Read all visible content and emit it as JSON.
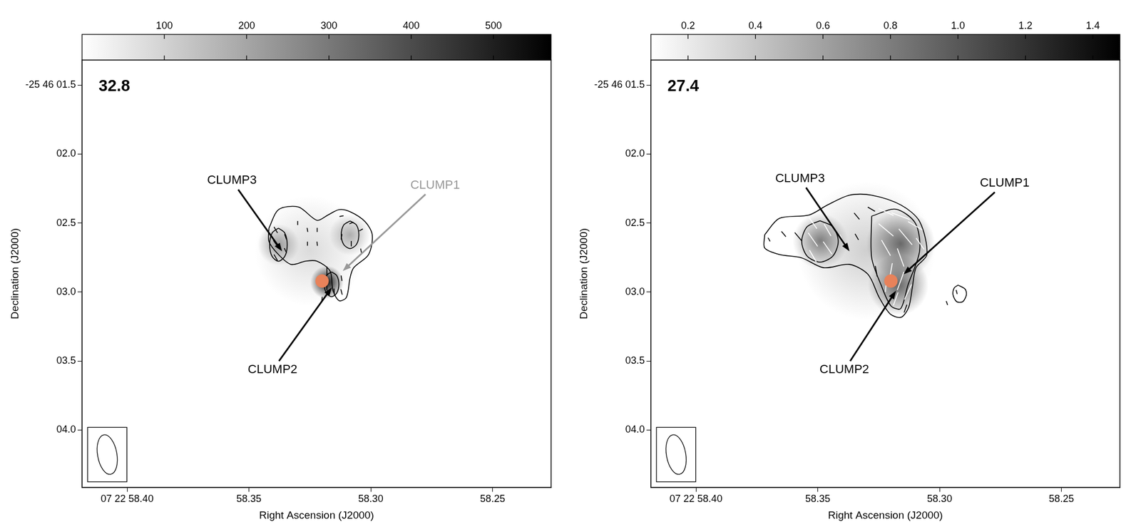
{
  "chart_data": [
    {
      "type": "contour",
      "title": "32.8",
      "xlabel": "Right Ascension (J2000)",
      "ylabel": "Declination (J2000)",
      "xlim": [
        58.4185,
        58.226
      ],
      "ylim": [
        4.416,
        1.318
      ],
      "xticks": [
        {
          "value": 58.4,
          "label": "07 22 58.40"
        },
        {
          "value": 58.35,
          "label": "58.35"
        },
        {
          "value": 58.3,
          "label": "58.30"
        },
        {
          "value": 58.25,
          "label": "58.25"
        }
      ],
      "yticks": [
        {
          "value": 1.5,
          "label": "-25 46 01.5"
        },
        {
          "value": 2.0,
          "label": "02.0"
        },
        {
          "value": 2.5,
          "label": "02.5"
        },
        {
          "value": 3.0,
          "label": "03.0"
        },
        {
          "value": 3.5,
          "label": "03.5"
        },
        {
          "value": 4.0,
          "label": "04.0"
        }
      ],
      "grid": false,
      "colorbar": {
        "range": [
          0,
          570
        ],
        "ticks": [
          100,
          200,
          300,
          400,
          500
        ]
      },
      "image_peaks": [
        {
          "ra": 58.325,
          "dec": 2.7,
          "value": 80,
          "size": 0.4
        },
        {
          "ra": 58.3379,
          "dec": 2.657,
          "value": 200,
          "size": 0.15
        },
        {
          "ra": 58.3085,
          "dec": 2.585,
          "value": 170,
          "size": 0.15
        },
        {
          "ra": 58.318,
          "dec": 2.93,
          "value": 540,
          "size": 0.12
        }
      ],
      "contours": [
        [
          [
            58.3418,
            2.537
          ],
          [
            58.3379,
            2.403
          ],
          [
            58.3297,
            2.384
          ],
          [
            58.3221,
            2.48
          ],
          [
            58.3176,
            2.442
          ],
          [
            58.313,
            2.403
          ],
          [
            58.3085,
            2.418
          ],
          [
            58.3024,
            2.489
          ],
          [
            58.2994,
            2.585
          ],
          [
            58.3009,
            2.728
          ],
          [
            58.307,
            2.824
          ],
          [
            58.3085,
            2.896
          ],
          [
            58.31,
            3.039
          ],
          [
            58.313,
            3.063
          ],
          [
            58.3155,
            2.991
          ],
          [
            58.3167,
            2.848
          ],
          [
            58.3221,
            2.776
          ],
          [
            58.3267,
            2.776
          ],
          [
            58.3327,
            2.8
          ],
          [
            58.3379,
            2.728
          ],
          [
            58.3418,
            2.633
          ]
        ],
        [
          [
            58.3379,
            2.537
          ],
          [
            58.3405,
            2.572
          ],
          [
            58.3415,
            2.657
          ],
          [
            58.3405,
            2.742
          ],
          [
            58.3379,
            2.777
          ],
          [
            58.3353,
            2.742
          ],
          [
            58.3343,
            2.657
          ],
          [
            58.3353,
            2.572
          ]
        ],
        [
          [
            58.3085,
            2.485
          ],
          [
            58.3111,
            2.514
          ],
          [
            58.3121,
            2.585
          ],
          [
            58.3111,
            2.656
          ],
          [
            58.3085,
            2.685
          ],
          [
            58.3059,
            2.656
          ],
          [
            58.3049,
            2.585
          ],
          [
            58.3059,
            2.514
          ]
        ],
        [
          [
            58.3161,
            2.854
          ],
          [
            58.3182,
            2.88
          ],
          [
            58.3191,
            2.944
          ],
          [
            58.3182,
            3.008
          ],
          [
            58.3161,
            3.034
          ],
          [
            58.314,
            3.008
          ],
          [
            58.3131,
            2.944
          ],
          [
            58.314,
            2.88
          ]
        ]
      ],
      "vector_sets": [
        {
          "color": "#000000",
          "vectors": [
            {
              "ra": 58.339,
              "dec": 2.55,
              "angle": 30,
              "length": 0.05
            },
            {
              "ra": 58.339,
              "dec": 2.65,
              "angle": 35,
              "length": 0.06
            },
            {
              "ra": 58.339,
              "dec": 2.75,
              "angle": 30,
              "length": 0.05
            },
            {
              "ra": 58.335,
              "dec": 2.6,
              "angle": 20,
              "length": 0.04
            },
            {
              "ra": 58.335,
              "dec": 2.7,
              "angle": 25,
              "length": 0.04
            },
            {
              "ra": 58.33,
              "dec": 2.5,
              "angle": 0,
              "length": 0.03
            },
            {
              "ra": 58.326,
              "dec": 2.55,
              "angle": 10,
              "length": 0.03
            },
            {
              "ra": 58.326,
              "dec": 2.65,
              "angle": 0,
              "length": 0.03
            },
            {
              "ra": 58.322,
              "dec": 2.55,
              "angle": 0,
              "length": 0.03
            },
            {
              "ra": 58.322,
              "dec": 2.65,
              "angle": 5,
              "length": 0.03
            },
            {
              "ra": 58.312,
              "dec": 2.45,
              "angle": -80,
              "length": 0.03
            },
            {
              "ra": 58.308,
              "dec": 2.5,
              "angle": -70,
              "length": 0.03
            },
            {
              "ra": 58.304,
              "dec": 2.55,
              "angle": -60,
              "length": 0.03
            },
            {
              "ra": 58.312,
              "dec": 2.6,
              "angle": -10,
              "length": 0.04
            },
            {
              "ra": 58.308,
              "dec": 2.65,
              "angle": 0,
              "length": 0.04
            },
            {
              "ra": 58.304,
              "dec": 2.7,
              "angle": 10,
              "length": 0.03
            },
            {
              "ra": 58.318,
              "dec": 2.85,
              "angle": 0,
              "length": 0.07
            },
            {
              "ra": 58.318,
              "dec": 2.95,
              "angle": 0,
              "length": 0.08
            },
            {
              "ra": 58.315,
              "dec": 3.0,
              "angle": 5,
              "length": 0.05
            },
            {
              "ra": 58.312,
              "dec": 2.9,
              "angle": 10,
              "length": 0.04
            },
            {
              "ra": 58.312,
              "dec": 3.0,
              "angle": 15,
              "length": 0.04
            },
            {
              "ra": 58.32,
              "dec": 3.05,
              "angle": -5,
              "length": 0.03
            }
          ]
        }
      ],
      "source": {
        "ra": 58.32,
        "dec": 2.92,
        "color": "#e8825a"
      },
      "beam": {
        "major": 0.29,
        "minor": 0.14,
        "pa": 10
      },
      "annotations": [
        {
          "text": "CLUMP3",
          "xy": [
            58.3364,
            2.705
          ],
          "xytext": [
            58.357,
            2.193
          ],
          "color": "#000000"
        },
        {
          "text": "CLUMP1",
          "xy": [
            58.3115,
            2.848
          ],
          "xytext": [
            58.2736,
            2.227
          ],
          "color": "#999999"
        },
        {
          "text": "CLUMP2",
          "xy": [
            58.316,
            2.967
          ],
          "xytext": [
            58.3403,
            3.565
          ],
          "color": "#000000"
        }
      ]
    },
    {
      "type": "contour",
      "title": "27.4",
      "xlabel": "Right Ascension (J2000)",
      "ylabel": "Declination (J2000)",
      "xlim": [
        58.4185,
        58.226
      ],
      "ylim": [
        4.416,
        1.318
      ],
      "xticks": [
        {
          "value": 58.4,
          "label": "07 22 58.40"
        },
        {
          "value": 58.35,
          "label": "58.35"
        },
        {
          "value": 58.3,
          "label": "58.30"
        },
        {
          "value": 58.25,
          "label": "58.25"
        }
      ],
      "yticks": [
        {
          "value": 1.5,
          "label": "-25 46 01.5"
        },
        {
          "value": 2.0,
          "label": "02.0"
        },
        {
          "value": 2.5,
          "label": "02.5"
        },
        {
          "value": 3.0,
          "label": "03.0"
        },
        {
          "value": 3.5,
          "label": "03.5"
        },
        {
          "value": 4.0,
          "label": "04.0"
        }
      ],
      "grid": false,
      "colorbar": {
        "range": [
          0.09,
          1.48
        ],
        "ticks": [
          0.2,
          0.4,
          0.6,
          0.8,
          {
            "value": 1,
            "label": "1.0"
          },
          1.2,
          1.4
        ]
      },
      "image_peaks": [
        {
          "ra": 58.33,
          "dec": 2.7,
          "value": 0.35,
          "size": 0.5
        },
        {
          "ra": 58.349,
          "dec": 2.63,
          "value": 0.75,
          "size": 0.2
        },
        {
          "ra": 58.316,
          "dec": 2.65,
          "value": 0.85,
          "size": 0.25
        },
        {
          "ra": 58.317,
          "dec": 2.95,
          "value": 0.9,
          "size": 0.22
        }
      ],
      "contours": [
        [
          [
            58.3718,
            2.585
          ],
          [
            58.3658,
            2.466
          ],
          [
            58.3536,
            2.442
          ],
          [
            58.3461,
            2.37
          ],
          [
            58.337,
            2.298
          ],
          [
            58.3279,
            2.298
          ],
          [
            58.3158,
            2.37
          ],
          [
            58.3082,
            2.489
          ],
          [
            58.3052,
            2.728
          ],
          [
            58.3097,
            2.824
          ],
          [
            58.3112,
            2.968
          ],
          [
            58.3127,
            3.111
          ],
          [
            58.3158,
            3.183
          ],
          [
            58.3203,
            3.159
          ],
          [
            58.3248,
            3.039
          ],
          [
            58.3294,
            2.872
          ],
          [
            58.337,
            2.8
          ],
          [
            58.3476,
            2.824
          ],
          [
            58.3567,
            2.752
          ],
          [
            58.3658,
            2.728
          ],
          [
            58.3718,
            2.681
          ]
        ],
        [
          [
            58.3491,
            2.483
          ],
          [
            58.3544,
            2.527
          ],
          [
            58.3566,
            2.633
          ],
          [
            58.3544,
            2.739
          ],
          [
            58.3491,
            2.783
          ],
          [
            58.3438,
            2.739
          ],
          [
            58.3416,
            2.633
          ],
          [
            58.3438,
            2.527
          ]
        ],
        [
          [
            58.3279,
            2.45
          ],
          [
            58.318,
            2.4
          ],
          [
            58.31,
            2.5
          ],
          [
            58.3082,
            2.7
          ],
          [
            58.313,
            2.95
          ],
          [
            58.316,
            3.12
          ],
          [
            58.32,
            3.1
          ],
          [
            58.324,
            2.95
          ],
          [
            58.3279,
            2.75
          ]
        ],
        [
          [
            58.2924,
            2.95
          ],
          [
            58.2895,
            2.98
          ],
          [
            58.289,
            3.02
          ],
          [
            58.2905,
            3.07
          ],
          [
            58.293,
            3.07
          ],
          [
            58.2945,
            3.02
          ],
          [
            58.294,
            2.97
          ]
        ]
      ],
      "vector_sets": [
        {
          "color": "#000000",
          "vectors": [
            {
              "ra": 58.364,
              "dec": 2.58,
              "angle": 40,
              "length": 0.05
            },
            {
              "ra": 58.37,
              "dec": 2.62,
              "angle": 30,
              "length": 0.03
            },
            {
              "ra": 58.358,
              "dec": 2.6,
              "angle": 40,
              "length": 0.08
            },
            {
              "ra": 58.334,
              "dec": 2.45,
              "angle": 40,
              "length": 0.06
            },
            {
              "ra": 58.334,
              "dec": 2.6,
              "angle": 30,
              "length": 0.05
            },
            {
              "ra": 58.328,
              "dec": 2.4,
              "angle": 60,
              "length": 0.06
            },
            {
              "ra": 58.326,
              "dec": 2.85,
              "angle": 10,
              "length": 0.08
            },
            {
              "ra": 58.314,
              "dec": 3.12,
              "angle": -20,
              "length": 0.06
            },
            {
              "ra": 58.293,
              "dec": 3.0,
              "angle": 15,
              "length": 0.03
            },
            {
              "ra": 58.297,
              "dec": 3.08,
              "angle": 20,
              "length": 0.03
            }
          ]
        },
        {
          "color": "#ffffff",
          "vectors": [
            {
              "ra": 58.352,
              "dec": 2.5,
              "angle": 35,
              "length": 0.1
            },
            {
              "ra": 58.352,
              "dec": 2.62,
              "angle": 35,
              "length": 0.12
            },
            {
              "ra": 58.352,
              "dec": 2.74,
              "angle": 30,
              "length": 0.1
            },
            {
              "ra": 58.346,
              "dec": 2.55,
              "angle": 30,
              "length": 0.1
            },
            {
              "ra": 58.346,
              "dec": 2.68,
              "angle": 35,
              "length": 0.11
            },
            {
              "ra": 58.34,
              "dec": 2.62,
              "angle": 25,
              "length": 0.08
            },
            {
              "ra": 58.322,
              "dec": 2.42,
              "angle": 65,
              "length": 0.12
            },
            {
              "ra": 58.316,
              "dec": 2.45,
              "angle": 70,
              "length": 0.14
            },
            {
              "ra": 58.31,
              "dec": 2.52,
              "angle": 60,
              "length": 0.12
            },
            {
              "ra": 58.322,
              "dec": 2.55,
              "angle": 50,
              "length": 0.14
            },
            {
              "ra": 58.314,
              "dec": 2.6,
              "angle": 40,
              "length": 0.15
            },
            {
              "ra": 58.308,
              "dec": 2.65,
              "angle": 35,
              "length": 0.1
            },
            {
              "ra": 58.322,
              "dec": 2.68,
              "angle": 30,
              "length": 0.13
            },
            {
              "ra": 58.316,
              "dec": 2.75,
              "angle": 20,
              "length": 0.14
            },
            {
              "ra": 58.32,
              "dec": 2.85,
              "angle": -10,
              "length": 0.12
            },
            {
              "ra": 58.316,
              "dec": 2.92,
              "angle": -20,
              "length": 0.14
            },
            {
              "ra": 58.313,
              "dec": 3.0,
              "angle": -25,
              "length": 0.12
            },
            {
              "ra": 58.318,
              "dec": 3.05,
              "angle": -20,
              "length": 0.1
            },
            {
              "ra": 58.322,
              "dec": 2.95,
              "angle": -5,
              "length": 0.1
            }
          ]
        }
      ],
      "source": {
        "ra": 58.32,
        "dec": 2.92,
        "color": "#e8825a"
      },
      "beam": {
        "major": 0.29,
        "minor": 0.14,
        "pa": 10
      },
      "annotations": [
        {
          "text": "CLUMP3",
          "xy": [
            58.337,
            2.705
          ],
          "xytext": [
            58.3573,
            2.179
          ],
          "color": "#000000"
        },
        {
          "text": "CLUMP1",
          "xy": [
            58.3148,
            2.872
          ],
          "xytext": [
            58.2733,
            2.212
          ],
          "color": "#000000"
        },
        {
          "text": "CLUMP2",
          "xy": [
            58.3179,
            2.991
          ],
          "xytext": [
            58.3391,
            3.565
          ],
          "color": "#000000"
        }
      ]
    }
  ]
}
